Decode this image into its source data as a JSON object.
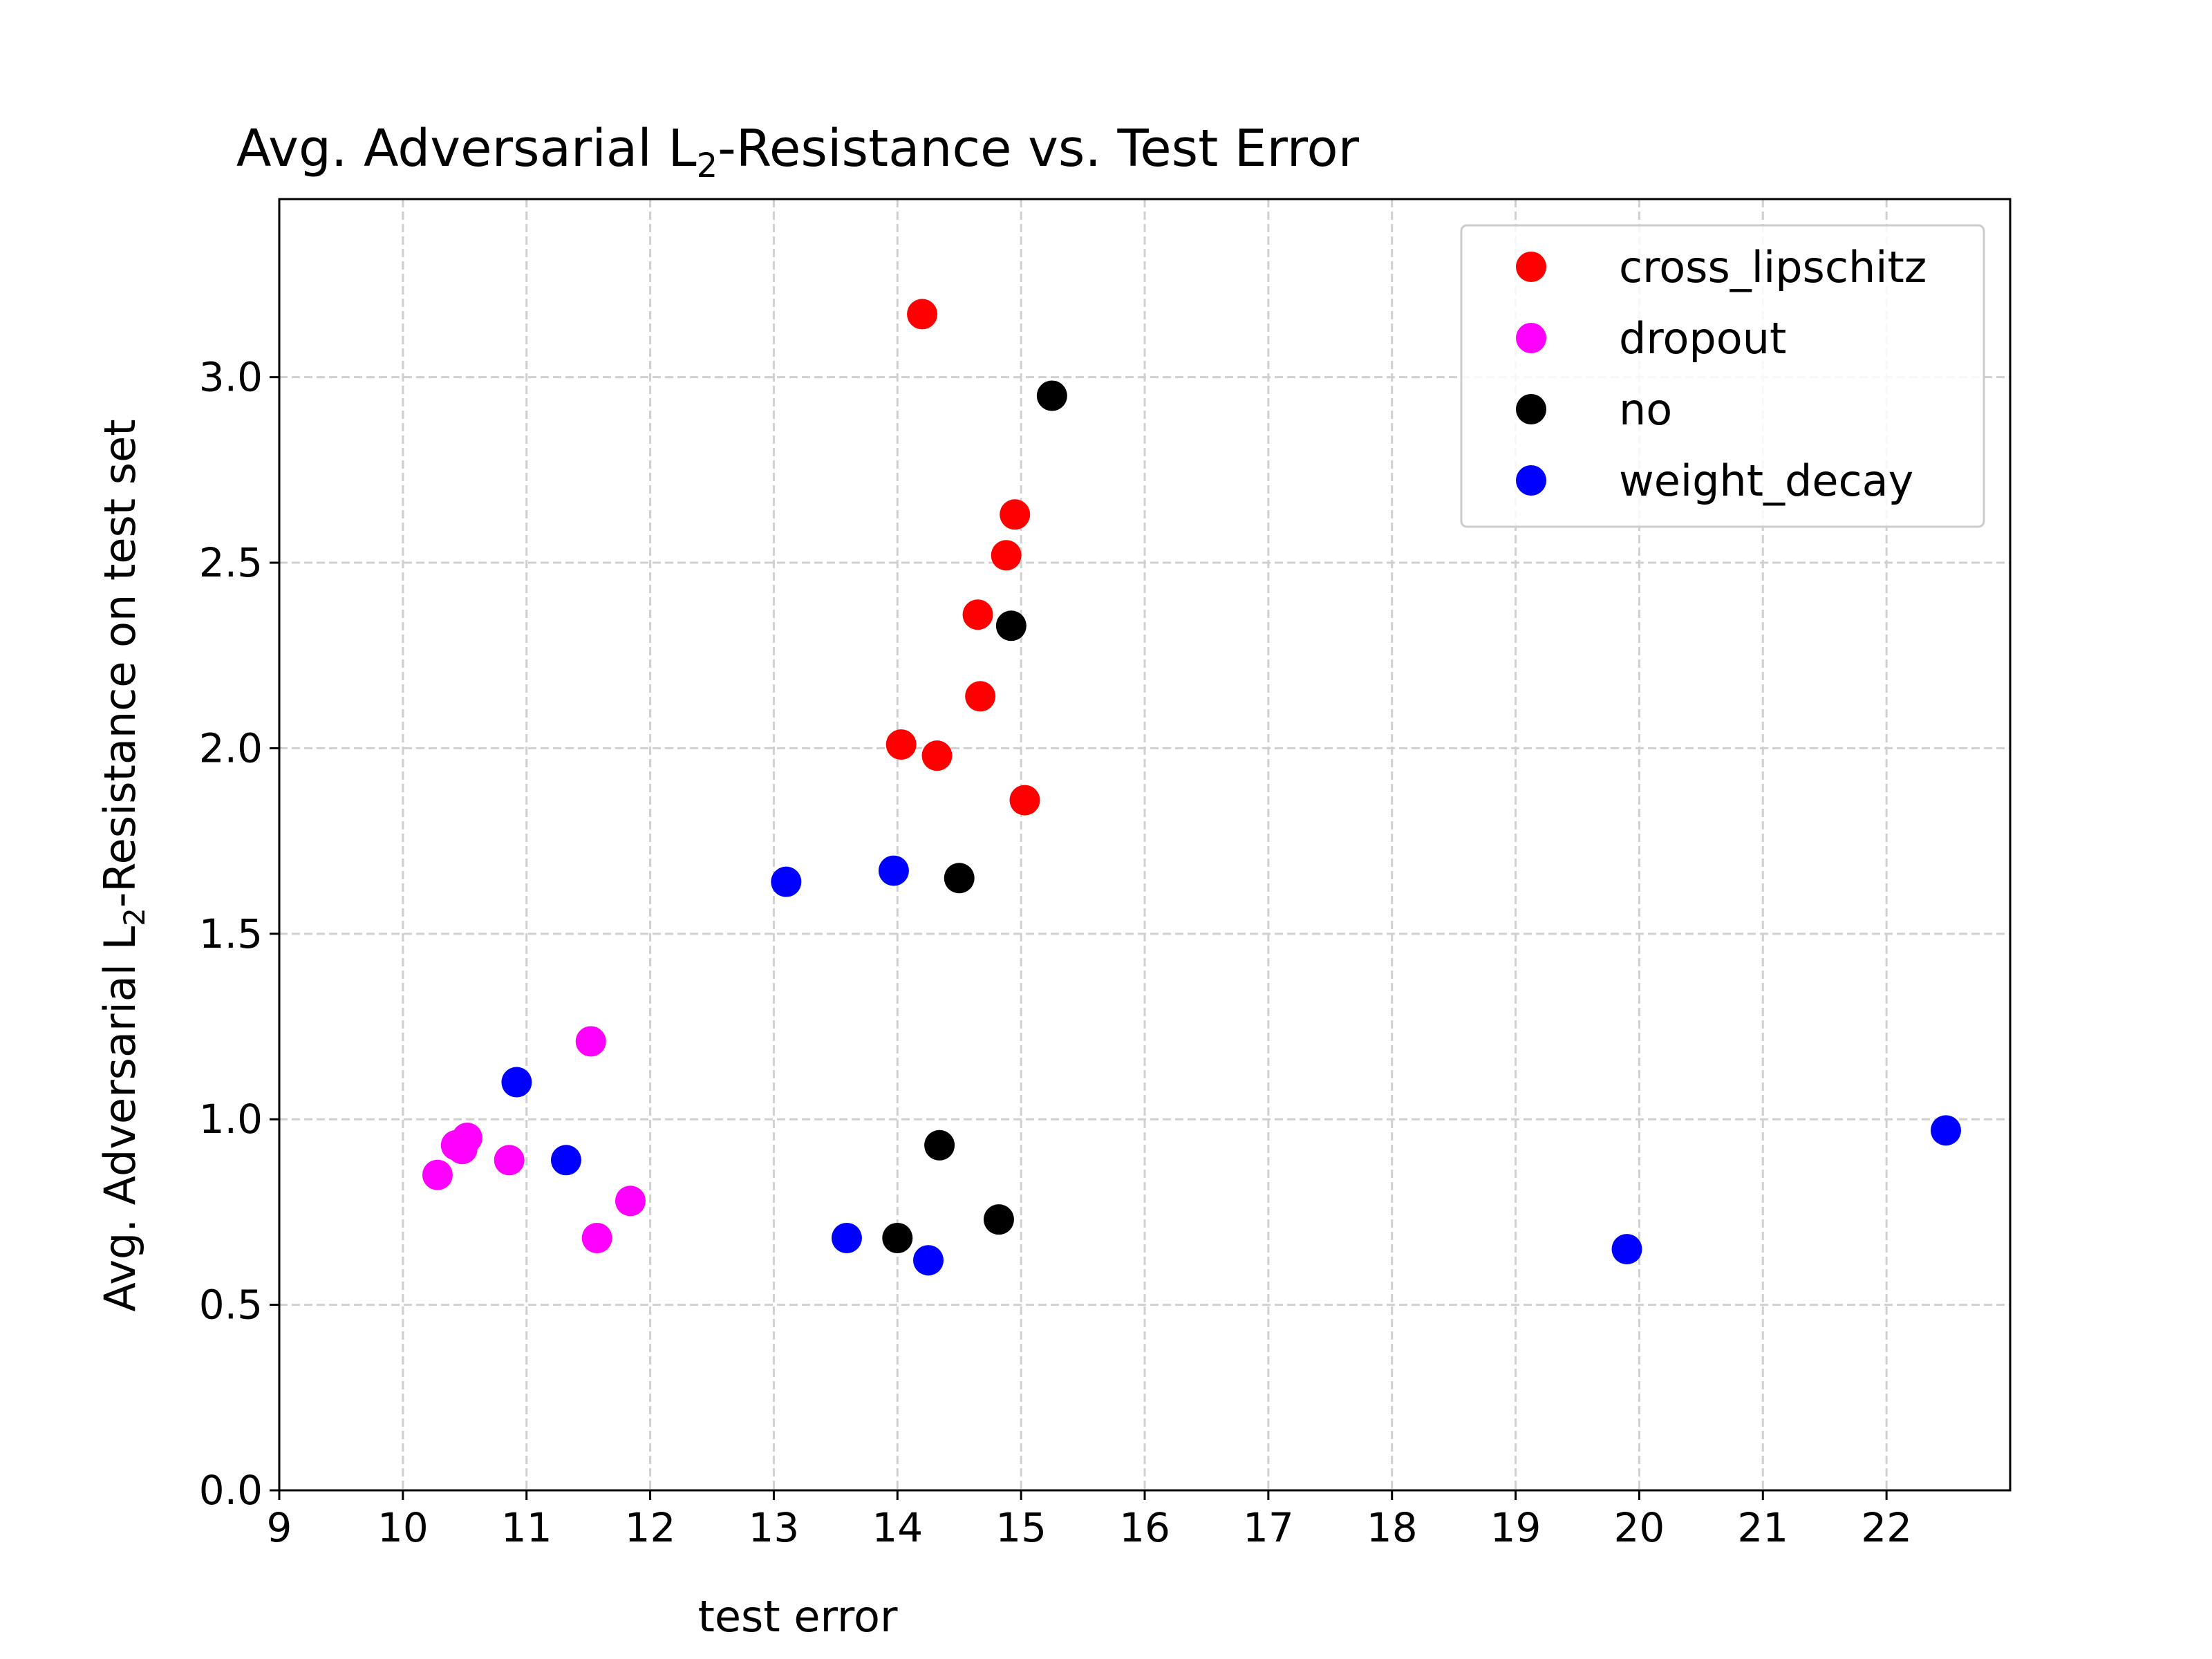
{
  "chart_data": {
    "type": "scatter",
    "title": {
      "before": "Avg. Adversarial L",
      "sub": "2",
      "after": "-Resistance vs. Test Error"
    },
    "xlabel": "test error",
    "ylabel": {
      "before": "Avg. Adversarial L",
      "sub": "2",
      "after": "-Resistance on test set"
    },
    "xlim": [
      9,
      23
    ],
    "ylim": [
      0,
      3.48
    ],
    "x_ticks": [
      9,
      10,
      11,
      12,
      13,
      14,
      15,
      16,
      17,
      18,
      19,
      20,
      21,
      22
    ],
    "y_ticks": [
      0,
      0.5,
      1.0,
      1.5,
      2.0,
      2.5,
      3.0
    ],
    "y_tick_labels": [
      "0.0",
      "0.5",
      "1.0",
      "1.5",
      "2.0",
      "2.5",
      "3.0"
    ],
    "grid": true,
    "legend_position": "top-right",
    "series": [
      {
        "name": "cross_lipschitz",
        "color": "#ff0000",
        "points": [
          [
            14.2,
            3.17
          ],
          [
            14.95,
            2.63
          ],
          [
            14.88,
            2.52
          ],
          [
            14.65,
            2.36
          ],
          [
            14.67,
            2.14
          ],
          [
            14.03,
            2.01
          ],
          [
            14.32,
            1.98
          ],
          [
            15.03,
            1.86
          ]
        ]
      },
      {
        "name": "dropout",
        "color": "#ff00ff",
        "points": [
          [
            11.52,
            1.21
          ],
          [
            10.52,
            0.95
          ],
          [
            10.43,
            0.93
          ],
          [
            10.48,
            0.92
          ],
          [
            10.86,
            0.89
          ],
          [
            10.28,
            0.85
          ],
          [
            11.84,
            0.78
          ],
          [
            11.57,
            0.68
          ]
        ]
      },
      {
        "name": "no",
        "color": "#000000",
        "points": [
          [
            15.25,
            2.95
          ],
          [
            14.92,
            2.33
          ],
          [
            14.5,
            1.65
          ],
          [
            14.34,
            0.93
          ],
          [
            14.82,
            0.73
          ],
          [
            14.0,
            0.68
          ]
        ]
      },
      {
        "name": "weight_decay",
        "color": "#0000ff",
        "points": [
          [
            13.1,
            1.64
          ],
          [
            13.97,
            1.67
          ],
          [
            10.92,
            1.1
          ],
          [
            11.32,
            0.89
          ],
          [
            13.59,
            0.68
          ],
          [
            14.25,
            0.62
          ],
          [
            19.9,
            0.65
          ],
          [
            22.48,
            0.97
          ]
        ]
      }
    ]
  }
}
